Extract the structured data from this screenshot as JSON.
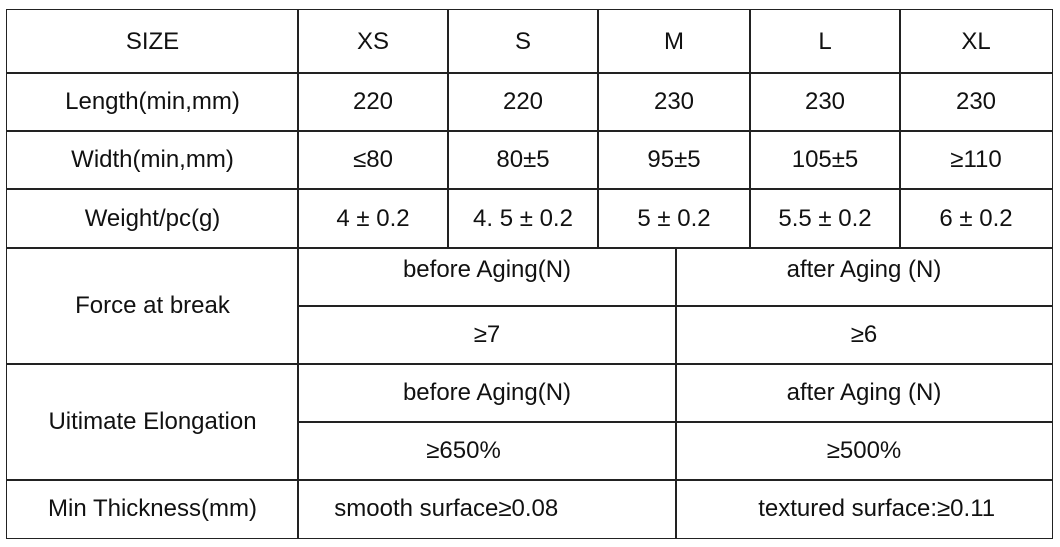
{
  "header": {
    "label": "SIZE",
    "sizes": [
      "XS",
      "S",
      "M",
      "L",
      "XL"
    ]
  },
  "rows": [
    {
      "label": "Length(min,mm)",
      "values": [
        "220",
        "220",
        "230",
        "230",
        "230"
      ]
    },
    {
      "label": "Width(min,mm)",
      "values": [
        "≤80",
        "80±5",
        "95±5",
        "105±5",
        "≥110"
      ]
    },
    {
      "label": "Weight/pc(g)",
      "values": [
        "4 ± 0.2",
        "4. 5 ± 0.2",
        "5 ± 0.2",
        "5.5 ± 0.2",
        "6 ± 0.2"
      ]
    }
  ],
  "force": {
    "label": "Force at break",
    "before_label": "before Aging(N)",
    "after_label": "after Aging (N)",
    "before_value": "≥7",
    "after_value": "≥6"
  },
  "elongation": {
    "label": "Uitimate Elongation",
    "before_label": "before Aging(N)",
    "after_label": "after Aging (N)",
    "before_value": "≥650%",
    "after_value": "≥500%"
  },
  "thickness": {
    "label": "Min Thickness(mm)",
    "smooth": "smooth surface≥0.08",
    "textured": "textured surface:≥0.11"
  }
}
